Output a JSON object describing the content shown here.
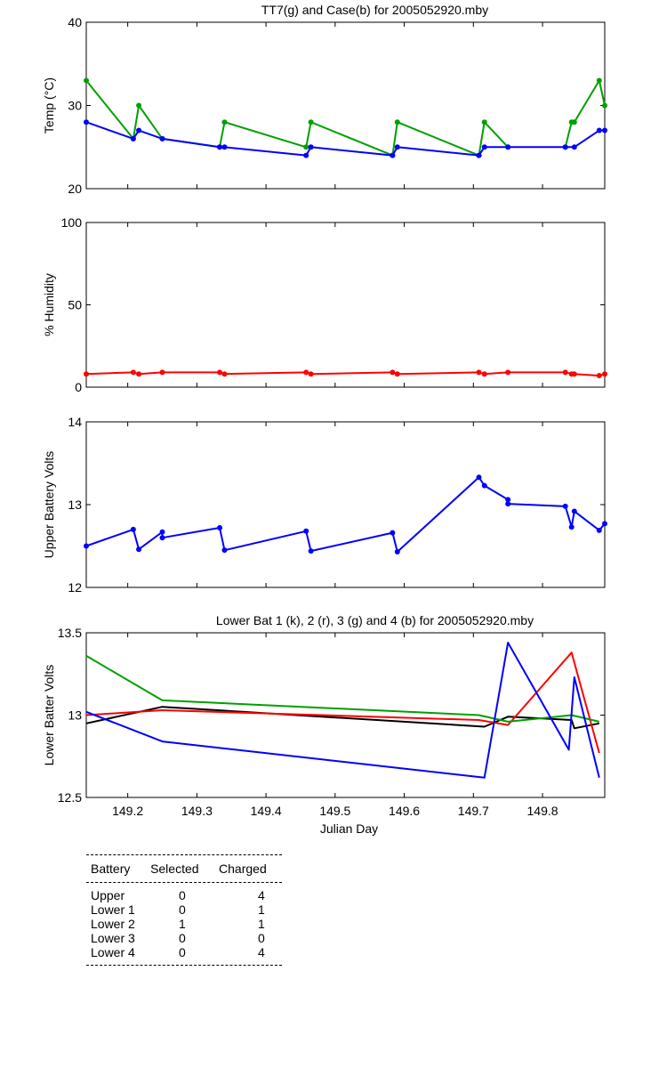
{
  "chart_data": [
    {
      "type": "line",
      "title": "TT7(g) and Case(b) for 2005052920.mby",
      "xlabel": "",
      "ylabel": "Temp  (°C)",
      "xlim": [
        149.14,
        149.89
      ],
      "ylim": [
        20,
        40
      ],
      "yticks": [
        "20",
        "30",
        "40"
      ],
      "series": [
        {
          "color": "#00a000",
          "x": [
            149.14,
            149.208,
            149.216,
            149.25,
            149.333,
            149.34,
            149.458,
            149.465,
            149.583,
            149.59,
            149.708,
            149.716,
            149.75
          ],
          "y": [
            33,
            26,
            30,
            26,
            25,
            28,
            25,
            28,
            24,
            28,
            24,
            28,
            25
          ]
        },
        {
          "color": "#00a000",
          "x": [
            149.833,
            149.842,
            149.846,
            149.882,
            149.89
          ],
          "y": [
            25,
            28,
            28,
            33,
            30
          ]
        },
        {
          "color": "#0000ff",
          "x": [
            149.14,
            149.208,
            149.216,
            149.25,
            149.333,
            149.34,
            149.458,
            149.465,
            149.583,
            149.59,
            149.708,
            149.716,
            149.75,
            149.833,
            149.846,
            149.882,
            149.89
          ],
          "y": [
            28,
            26,
            27,
            26,
            25,
            25,
            24,
            25,
            24,
            25,
            24,
            25,
            25,
            25,
            25,
            27,
            27
          ]
        }
      ]
    },
    {
      "type": "line",
      "title": "",
      "xlabel": "",
      "ylabel": "% Humidity",
      "xlim": [
        149.14,
        149.89
      ],
      "ylim": [
        0,
        100
      ],
      "yticks": [
        "0",
        "50",
        "100"
      ],
      "series": [
        {
          "color": "#ff0000",
          "x": [
            149.14,
            149.208,
            149.216,
            149.25,
            149.333,
            149.34,
            149.458,
            149.465,
            149.583,
            149.59,
            149.708,
            149.716,
            149.75,
            149.833,
            149.842,
            149.846,
            149.882,
            149.89
          ],
          "y": [
            8,
            9,
            8,
            9,
            9,
            8,
            9,
            8,
            9,
            8,
            9,
            8,
            9,
            9,
            8,
            8,
            7,
            8
          ]
        }
      ]
    },
    {
      "type": "line",
      "title": "",
      "xlabel": "",
      "ylabel": "Upper Battery Volts",
      "xlim": [
        149.14,
        149.89
      ],
      "ylim": [
        12,
        14
      ],
      "yticks": [
        "12",
        "13",
        "14"
      ],
      "series": [
        {
          "color": "#0000ff",
          "x": [
            149.14,
            149.208,
            149.216,
            149.25,
            149.25,
            149.333,
            149.34,
            149.458,
            149.465,
            149.583,
            149.59,
            149.708,
            149.716,
            149.75,
            149.75,
            149.833,
            149.842,
            149.846,
            149.882,
            149.89
          ],
          "y": [
            12.5,
            12.7,
            12.46,
            12.67,
            12.6,
            12.72,
            12.45,
            12.68,
            12.44,
            12.66,
            12.43,
            13.33,
            13.23,
            13.06,
            13.01,
            12.98,
            12.73,
            12.92,
            12.69,
            12.77
          ]
        }
      ]
    },
    {
      "type": "line",
      "title": "Lower Bat 1 (k), 2 (r), 3 (g) and 4 (b) for 2005052920.mby",
      "xlabel": "Julian Day",
      "ylabel": "Lower Batter Volts",
      "xlim": [
        149.14,
        149.89
      ],
      "ylim": [
        12.5,
        13.5
      ],
      "yticks": [
        "12.5",
        "13",
        "13.5"
      ],
      "xticks": [
        "149.2",
        "149.3",
        "149.4",
        "149.5",
        "149.6",
        "149.7",
        "149.8"
      ],
      "series": [
        {
          "color": "#000000",
          "x": [
            149.14,
            149.25,
            149.716,
            149.75,
            149.842,
            149.846,
            149.882
          ],
          "y": [
            12.95,
            13.05,
            12.93,
            12.99,
            12.97,
            12.92,
            12.95
          ]
        },
        {
          "color": "#ff0000",
          "x": [
            149.14,
            149.25,
            149.708,
            149.75,
            149.842,
            149.882
          ],
          "y": [
            13.0,
            13.03,
            12.97,
            12.94,
            13.38,
            12.77
          ]
        },
        {
          "color": "#00a000",
          "x": [
            149.14,
            149.25,
            149.708,
            149.75,
            149.842,
            149.882
          ],
          "y": [
            13.36,
            13.09,
            13.0,
            12.96,
            13.0,
            12.96
          ]
        },
        {
          "color": "#0000ff",
          "x": [
            149.14,
            149.25,
            149.716,
            149.75,
            149.838,
            149.846,
            149.882
          ],
          "y": [
            13.02,
            12.84,
            12.62,
            13.44,
            12.79,
            13.23,
            12.62
          ]
        }
      ]
    }
  ],
  "battery_table": {
    "headers": [
      "Battery",
      "Selected",
      "Charged"
    ],
    "rows": [
      [
        "Upper",
        "0",
        "4"
      ],
      [
        "Lower 1",
        "0",
        "1"
      ],
      [
        "Lower 2",
        "1",
        "1"
      ],
      [
        "Lower 3",
        "0",
        "0"
      ],
      [
        "Lower 4",
        "0",
        "4"
      ]
    ]
  }
}
